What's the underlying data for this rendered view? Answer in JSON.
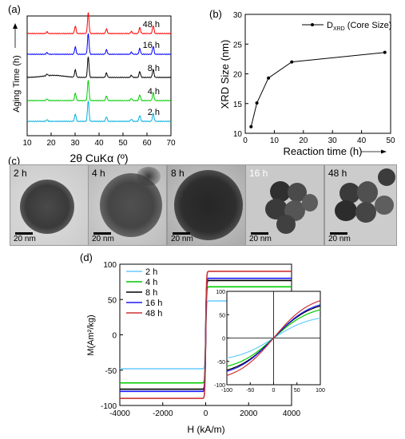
{
  "panels": {
    "a": "(a)",
    "b": "(b)",
    "c": "(c)",
    "d": "(d)"
  },
  "chart_data": [
    {
      "type": "line",
      "panel": "(a)",
      "xlabel": "2θ CuKα (º)",
      "ylabel": "Aging Time (h)",
      "xlim": [
        10,
        70
      ],
      "xticks": [
        "10",
        "20",
        "30",
        "40",
        "50",
        "60",
        "70"
      ],
      "series": [
        {
          "name": "48 h",
          "color": "#ff0000"
        },
        {
          "name": "16 h",
          "color": "#0000ff"
        },
        {
          "name": "8 h",
          "color": "#000000"
        },
        {
          "name": "4 h",
          "color": "#00cc00"
        },
        {
          "name": "2 h",
          "color": "#00b0e0"
        }
      ],
      "peaks": [
        {
          "x": 18.3,
          "h": 0.08
        },
        {
          "x": 30.1,
          "h": 0.35
        },
        {
          "x": 35.5,
          "h": 1.0
        },
        {
          "x": 43.1,
          "h": 0.22
        },
        {
          "x": 53.5,
          "h": 0.1
        },
        {
          "x": 57.0,
          "h": 0.28
        },
        {
          "x": 62.6,
          "h": 0.38
        }
      ]
    },
    {
      "type": "line",
      "panel": "(b)",
      "xlabel": "Reaction time (h)",
      "ylabel": "XRD Size (nm)",
      "legend": "D",
      "legend_sub": "XRD",
      "legend_suffix": " (Core Size)",
      "xlim": [
        0,
        50
      ],
      "ylim": [
        10,
        30
      ],
      "xticks": [
        0,
        10,
        20,
        30,
        40,
        50
      ],
      "yticks": [
        10,
        15,
        20,
        25,
        30
      ],
      "x": [
        2,
        4,
        8,
        16,
        48
      ],
      "y": [
        11.1,
        15.1,
        19.3,
        22.0,
        23.6
      ]
    },
    {
      "type": "line",
      "panel": "(d)",
      "xlabel": "H (kA/m)",
      "ylabel": "M(Am²/kg)",
      "xlim": [
        -4000,
        4000
      ],
      "ylim": [
        -100,
        100
      ],
      "xticks": [
        -4000,
        -2000,
        0,
        2000,
        4000
      ],
      "yticks": [
        -100,
        -50,
        0,
        50,
        100
      ],
      "series": [
        {
          "name": "2 h",
          "color": "#66ccff",
          "ms": 48
        },
        {
          "name": "4 h",
          "color": "#00cc00",
          "ms": 68
        },
        {
          "name": "8 h",
          "color": "#000000",
          "ms": 77
        },
        {
          "name": "16 h",
          "color": "#1a1aff",
          "ms": 80
        },
        {
          "name": "48 h",
          "color": "#cc3333",
          "ms": 90
        }
      ],
      "inset": {
        "xlim": [
          -100,
          100
        ],
        "ylim": [
          -100,
          100
        ],
        "xticks": [
          -100,
          -50,
          0,
          50,
          100
        ],
        "yticks": [
          -100,
          -50,
          0,
          50,
          100
        ]
      }
    }
  ],
  "tem_images": [
    {
      "label": "2 h",
      "scale": "20 nm"
    },
    {
      "label": "4 h",
      "scale": "20 nm"
    },
    {
      "label": "8 h",
      "scale": "20 nm"
    },
    {
      "label": "16 h",
      "scale": "20 nm"
    },
    {
      "label": "48 h",
      "scale": "20 nm"
    }
  ]
}
